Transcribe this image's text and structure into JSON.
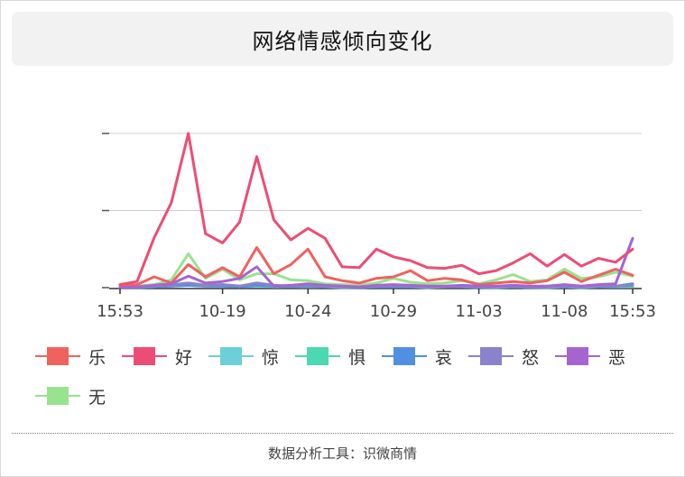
{
  "title": "网络情感倾向变化",
  "footer": "数据分析工具：识微商情",
  "chart_data": {
    "type": "line",
    "x": [
      "15:53",
      "",
      "",
      "",
      "",
      "",
      "10-19",
      "",
      "",
      "",
      "",
      "10-24",
      "",
      "",
      "",
      "",
      "10-29",
      "",
      "",
      "",
      "",
      "11-03",
      "",
      "",
      "",
      "",
      "11-08",
      "",
      "",
      "",
      "15:53"
    ],
    "x_tick_labels": [
      "15:53",
      "10-19",
      "10-24",
      "10-29",
      "11-03",
      "11-08",
      "15:53"
    ],
    "ylim": [
      0,
      200
    ],
    "y_ticks": [
      0,
      100,
      200
    ],
    "grid": true,
    "legend_position": "bottom",
    "series": [
      {
        "name": "乐",
        "color": "#f0625e",
        "values": [
          2,
          4,
          14,
          6,
          30,
          14,
          26,
          14,
          52,
          18,
          30,
          50,
          14,
          9,
          6,
          12,
          14,
          22,
          9,
          12,
          10,
          4,
          6,
          8,
          6,
          9,
          20,
          8,
          16,
          24,
          16
        ]
      },
      {
        "name": "好",
        "color": "#ec4d76",
        "values": [
          4,
          8,
          65,
          110,
          200,
          70,
          58,
          85,
          170,
          88,
          62,
          77,
          64,
          27,
          26,
          50,
          40,
          35,
          26,
          25,
          29,
          18,
          22,
          32,
          44,
          28,
          43,
          28,
          38,
          33,
          50
        ]
      },
      {
        "name": "惊",
        "color": "#6dcfd7",
        "values": [
          0,
          0,
          1,
          2,
          3,
          2,
          2,
          1,
          2,
          1,
          1,
          1,
          1,
          0,
          0,
          1,
          1,
          1,
          0,
          1,
          1,
          0,
          0,
          1,
          0,
          0,
          1,
          0,
          1,
          1,
          1
        ]
      },
      {
        "name": "惧",
        "color": "#4cd8b0",
        "values": [
          0,
          1,
          2,
          4,
          6,
          3,
          4,
          2,
          6,
          3,
          2,
          3,
          2,
          1,
          1,
          2,
          2,
          2,
          1,
          1,
          2,
          1,
          1,
          2,
          1,
          1,
          2,
          1,
          2,
          2,
          2
        ]
      },
      {
        "name": "哀",
        "color": "#4f90e0",
        "values": [
          0,
          0,
          1,
          2,
          3,
          2,
          2,
          1,
          3,
          2,
          1,
          2,
          1,
          1,
          0,
          1,
          1,
          1,
          1,
          1,
          1,
          0,
          1,
          1,
          0,
          1,
          1,
          1,
          1,
          2,
          5
        ]
      },
      {
        "name": "怒",
        "color": "#8a82cc",
        "values": [
          0,
          1,
          2,
          3,
          6,
          3,
          4,
          2,
          6,
          3,
          2,
          3,
          2,
          1,
          1,
          2,
          2,
          2,
          1,
          1,
          2,
          1,
          1,
          2,
          1,
          1,
          2,
          1,
          2,
          2,
          3
        ]
      },
      {
        "name": "恶",
        "color": "#a565cf",
        "values": [
          0,
          1,
          3,
          5,
          15,
          6,
          8,
          12,
          27,
          2,
          3,
          5,
          3,
          2,
          1,
          3,
          4,
          3,
          2,
          2,
          3,
          2,
          2,
          3,
          2,
          2,
          4,
          2,
          4,
          5,
          64
        ]
      },
      {
        "name": "无",
        "color": "#97e38f",
        "values": [
          0,
          2,
          4,
          10,
          44,
          12,
          24,
          10,
          18,
          18,
          10,
          9,
          5,
          4,
          3,
          6,
          12,
          7,
          5,
          6,
          9,
          5,
          10,
          17,
          8,
          10,
          24,
          12,
          14,
          20,
          15
        ]
      }
    ]
  }
}
